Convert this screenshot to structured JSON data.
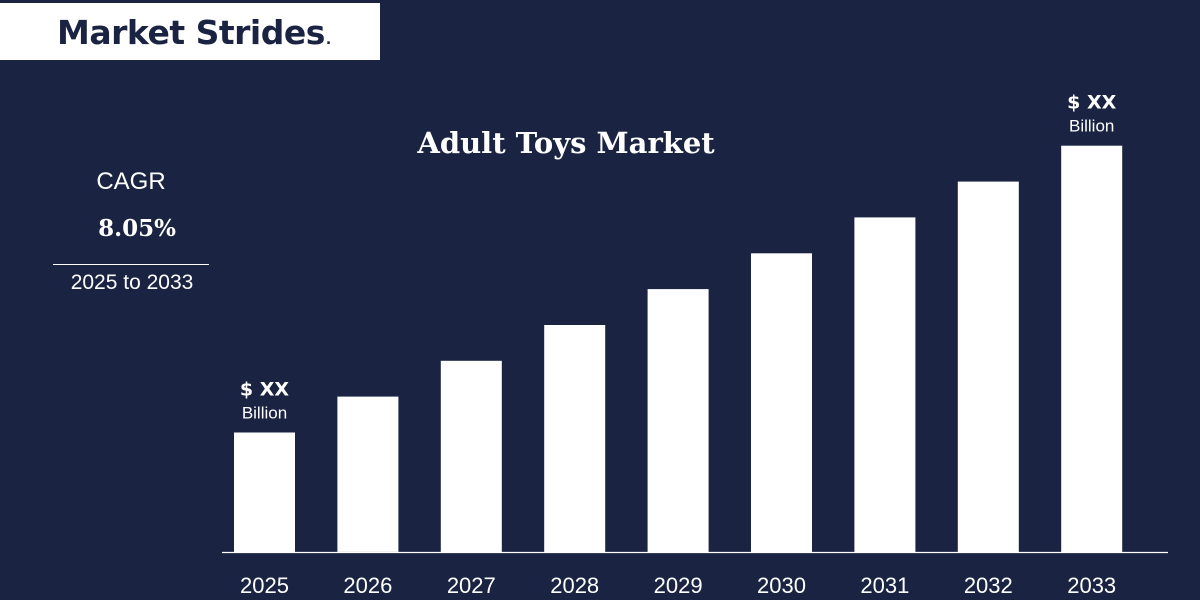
{
  "brand": {
    "name": "Market Strides",
    "mark": "."
  },
  "cagr": {
    "label": "CAGR",
    "value": "8.05%",
    "range": "2025 to 2033"
  },
  "chart_data": {
    "type": "bar",
    "title": "Adult Toys Market",
    "categories": [
      "2025",
      "2026",
      "2027",
      "2028",
      "2029",
      "2030",
      "2031",
      "2032",
      "2033"
    ],
    "values": [
      1.0,
      1.3,
      1.6,
      1.9,
      2.2,
      2.5,
      2.8,
      3.1,
      3.4
    ],
    "value_note": "relative bar heights; absolute values not shown",
    "annotations": [
      {
        "category": "2025",
        "value_text": "$ XX",
        "unit_text": "Billion"
      },
      {
        "category": "2033",
        "value_text": "$ XX",
        "unit_text": "Billion"
      }
    ],
    "grid": false,
    "bar_color": "#ffffff",
    "background": "#1a2442"
  }
}
